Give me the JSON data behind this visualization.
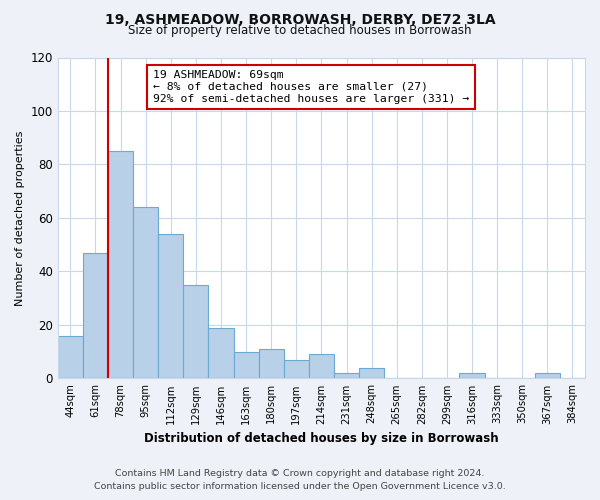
{
  "title": "19, ASHMEADOW, BORROWASH, DERBY, DE72 3LA",
  "subtitle": "Size of property relative to detached houses in Borrowash",
  "xlabel": "Distribution of detached houses by size in Borrowash",
  "ylabel": "Number of detached properties",
  "categories": [
    "44sqm",
    "61sqm",
    "78sqm",
    "95sqm",
    "112sqm",
    "129sqm",
    "146sqm",
    "163sqm",
    "180sqm",
    "197sqm",
    "214sqm",
    "231sqm",
    "248sqm",
    "265sqm",
    "282sqm",
    "299sqm",
    "316sqm",
    "333sqm",
    "350sqm",
    "367sqm",
    "384sqm"
  ],
  "values": [
    16,
    47,
    85,
    64,
    54,
    35,
    19,
    10,
    11,
    7,
    9,
    2,
    4,
    0,
    0,
    0,
    2,
    0,
    0,
    2,
    0
  ],
  "bar_color": "#b8d0e8",
  "bar_edge_color": "#6aaad4",
  "marker_color": "#cc0000",
  "annotation_title": "19 ASHMEADOW: 69sqm",
  "annotation_line1": "← 8% of detached houses are smaller (27)",
  "annotation_line2": "92% of semi-detached houses are larger (331) →",
  "annotation_box_color": "#ffffff",
  "annotation_box_edge": "#cc0000",
  "ylim": [
    0,
    120
  ],
  "yticks": [
    0,
    20,
    40,
    60,
    80,
    100,
    120
  ],
  "footer1": "Contains HM Land Registry data © Crown copyright and database right 2024.",
  "footer2": "Contains public sector information licensed under the Open Government Licence v3.0.",
  "bg_color": "#eef2f8",
  "plot_bg_color": "#ffffff",
  "grid_color": "#c8d8ec"
}
